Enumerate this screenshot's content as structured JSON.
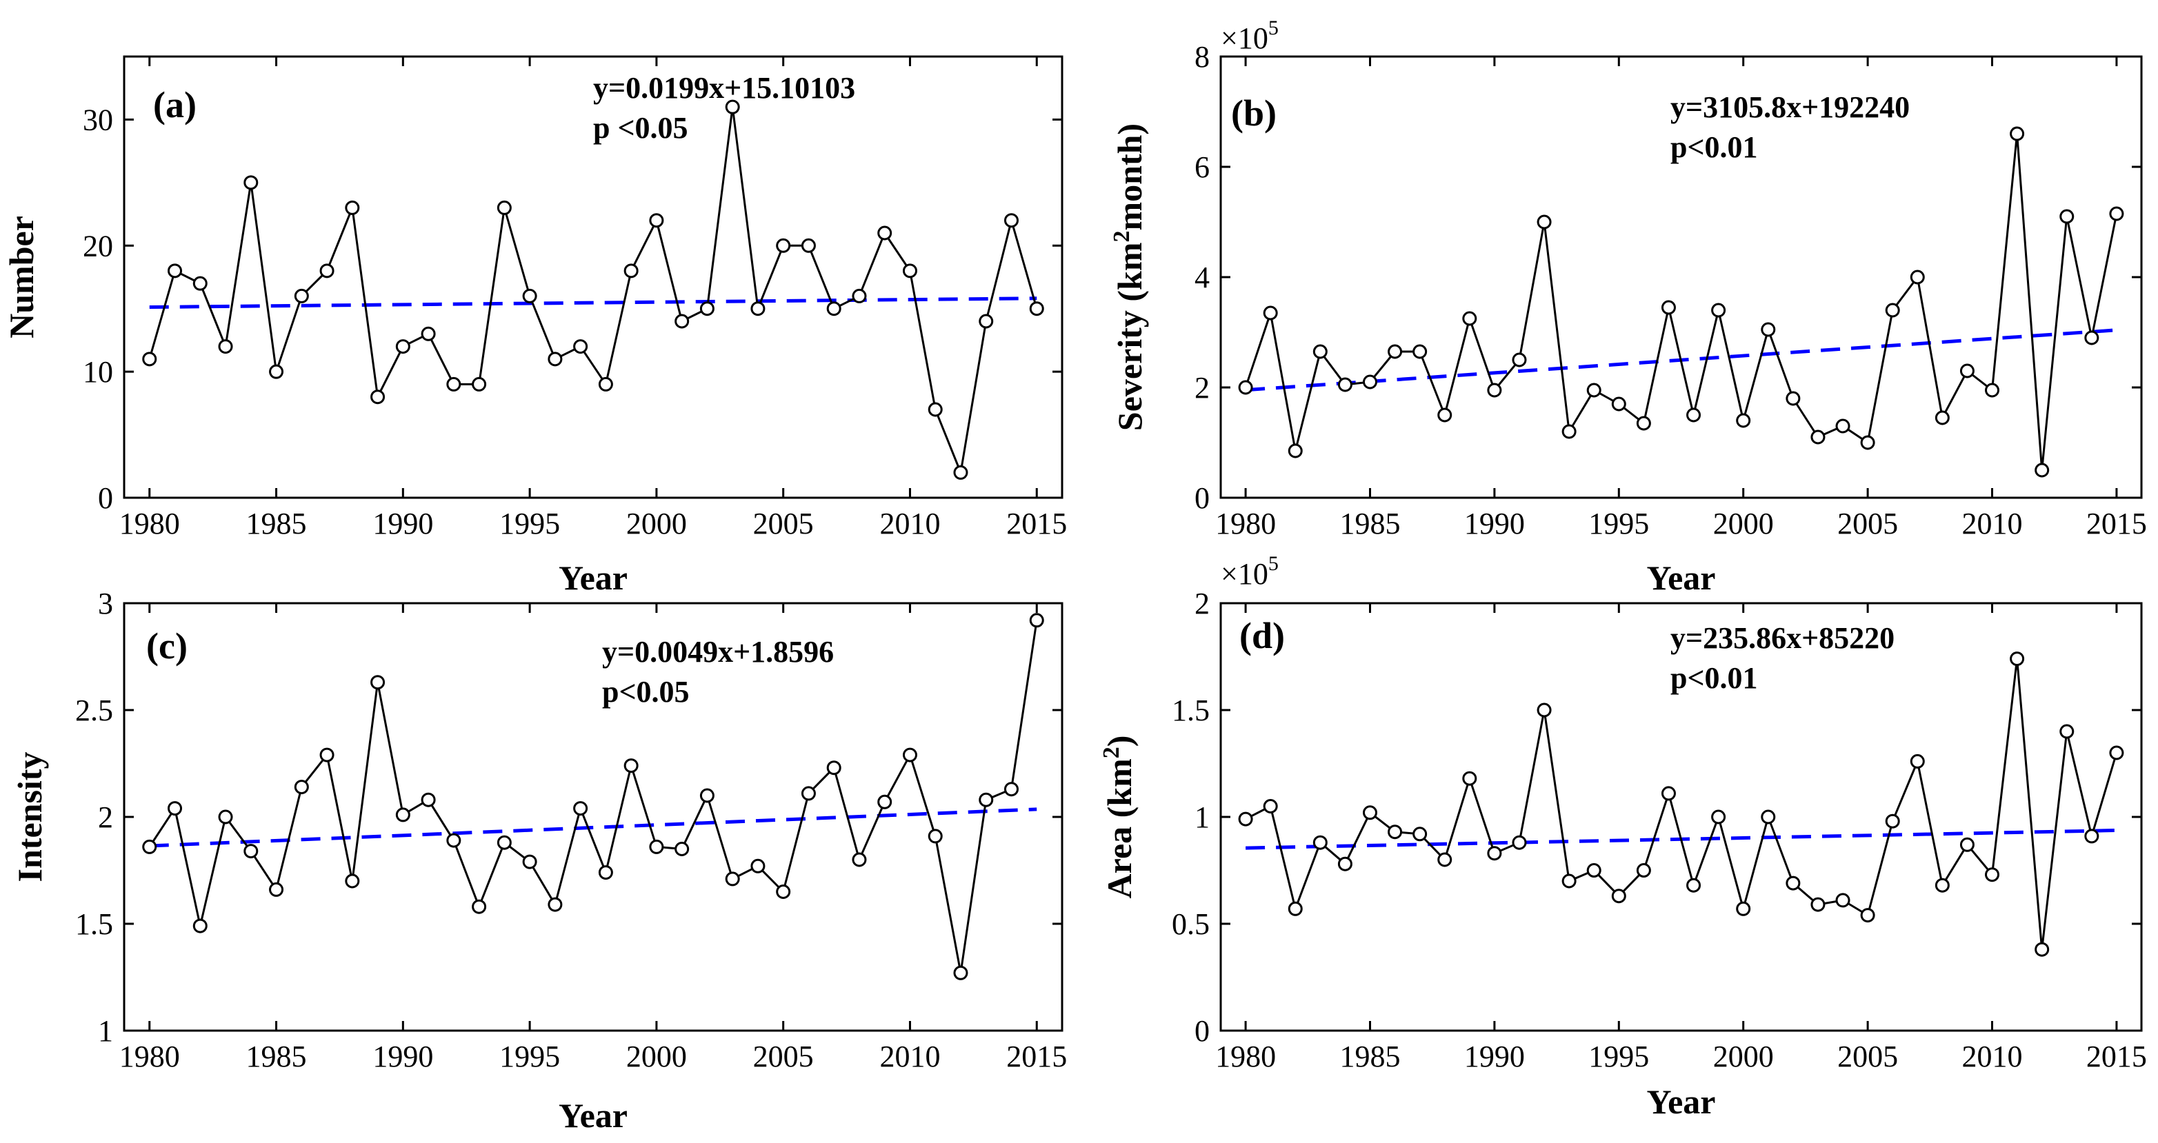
{
  "chart_data": [
    {
      "type": "line",
      "panel": "(a)",
      "xlabel": "Year",
      "ylabel": "Number",
      "xlim": [
        1979,
        2016
      ],
      "ylim": [
        0,
        35
      ],
      "xticks": [
        "1980",
        "1985",
        "1990",
        "1995",
        "2000",
        "2005",
        "2010",
        "2015"
      ],
      "yticks": [
        "0",
        "10",
        "20",
        "30"
      ],
      "equation": "y=0.0199x+15.10103",
      "p_value": "p <0.05",
      "trend": {
        "intercept": 15.10103,
        "slope": 0.0199
      },
      "x": [
        1980,
        1981,
        1982,
        1983,
        1984,
        1985,
        1986,
        1987,
        1988,
        1989,
        1990,
        1991,
        1992,
        1993,
        1994,
        1995,
        1996,
        1997,
        1998,
        1999,
        2000,
        2001,
        2002,
        2003,
        2004,
        2005,
        2006,
        2007,
        2008,
        2009,
        2010,
        2011,
        2012,
        2013,
        2014,
        2015
      ],
      "values": [
        11,
        18,
        17,
        12,
        25,
        10,
        16,
        18,
        23,
        8,
        12,
        13,
        9,
        9,
        23,
        16,
        11,
        12,
        9,
        18,
        22,
        14,
        15,
        31,
        15,
        20,
        20,
        15,
        16,
        21,
        18,
        7,
        2,
        14,
        22,
        15
      ],
      "grid": false,
      "series_color": "#000000",
      "trend_color": "#0000ff"
    },
    {
      "type": "line",
      "panel": "(b)",
      "xlabel": "Year",
      "ylabel": "Severity (km²month)",
      "ylabel_parts": {
        "pre": "Severity (km",
        "sup": "2",
        "post": "month)"
      },
      "exponent": {
        "base": "×10",
        "power": "5"
      },
      "xlim": [
        1979,
        2016
      ],
      "ylim": [
        0,
        8
      ],
      "xticks": [
        "1980",
        "1985",
        "1990",
        "1995",
        "2000",
        "2005",
        "2010",
        "2015"
      ],
      "yticks": [
        "0",
        "2",
        "4",
        "6",
        "8"
      ],
      "equation": "y=3105.8x+192240",
      "p_value": "p<0.01",
      "trend": {
        "intercept": 192240,
        "slope": 3105.8,
        "scale": 100000
      },
      "x": [
        1980,
        1981,
        1982,
        1983,
        1984,
        1985,
        1986,
        1987,
        1988,
        1989,
        1990,
        1991,
        1992,
        1993,
        1994,
        1995,
        1996,
        1997,
        1998,
        1999,
        2000,
        2001,
        2002,
        2003,
        2004,
        2005,
        2006,
        2007,
        2008,
        2009,
        2010,
        2011,
        2012,
        2013,
        2014,
        2015
      ],
      "values": [
        2.0,
        3.35,
        0.85,
        2.65,
        2.05,
        2.1,
        2.65,
        2.65,
        1.5,
        3.25,
        1.95,
        2.5,
        5.0,
        1.2,
        1.95,
        1.7,
        1.35,
        3.45,
        1.5,
        3.4,
        1.4,
        3.05,
        1.8,
        1.1,
        1.3,
        1.0,
        3.4,
        4.0,
        1.45,
        2.3,
        1.95,
        6.6,
        0.5,
        5.1,
        2.9,
        5.15
      ],
      "grid": false,
      "series_color": "#000000",
      "trend_color": "#0000ff"
    },
    {
      "type": "line",
      "panel": "(c)",
      "xlabel": "Year",
      "ylabel": "Intensity",
      "xlim": [
        1979,
        2016
      ],
      "ylim": [
        1,
        3
      ],
      "xticks": [
        "1980",
        "1985",
        "1990",
        "1995",
        "2000",
        "2005",
        "2010",
        "2015"
      ],
      "yticks": [
        "1",
        "1.5",
        "2",
        "2.5",
        "3"
      ],
      "equation": "y=0.0049x+1.8596",
      "p_value": "p<0.05",
      "trend": {
        "intercept": 1.8596,
        "slope": 0.0049
      },
      "x": [
        1980,
        1981,
        1982,
        1983,
        1984,
        1985,
        1986,
        1987,
        1988,
        1989,
        1990,
        1991,
        1992,
        1993,
        1994,
        1995,
        1996,
        1997,
        1998,
        1999,
        2000,
        2001,
        2002,
        2003,
        2004,
        2005,
        2006,
        2007,
        2008,
        2009,
        2010,
        2011,
        2012,
        2013,
        2014,
        2015
      ],
      "values": [
        1.86,
        2.04,
        1.49,
        2.0,
        1.84,
        1.66,
        2.14,
        2.29,
        1.7,
        2.63,
        2.01,
        2.08,
        1.89,
        1.58,
        1.88,
        1.79,
        1.59,
        2.04,
        1.74,
        2.24,
        1.86,
        1.85,
        2.1,
        1.71,
        1.77,
        1.65,
        2.11,
        2.23,
        1.8,
        2.07,
        2.29,
        1.91,
        1.27,
        2.08,
        2.13,
        2.92
      ],
      "grid": false,
      "series_color": "#000000",
      "trend_color": "#0000ff"
    },
    {
      "type": "line",
      "panel": "(d)",
      "xlabel": "Year",
      "ylabel": "Area (km²)",
      "ylabel_parts": {
        "pre": "Area (km",
        "sup": "2",
        "post": ")"
      },
      "exponent": {
        "base": "×10",
        "power": "5"
      },
      "xlim": [
        1979,
        2016
      ],
      "ylim": [
        0,
        2
      ],
      "xticks": [
        "1980",
        "1985",
        "1990",
        "1995",
        "2000",
        "2005",
        "2010",
        "2015"
      ],
      "yticks": [
        "0",
        "0.5",
        "1",
        "1.5",
        "2"
      ],
      "equation": "y=235.86x+85220",
      "p_value": "p<0.01",
      "trend": {
        "intercept": 85220,
        "slope": 235.86,
        "scale": 100000
      },
      "x": [
        1980,
        1981,
        1982,
        1983,
        1984,
        1985,
        1986,
        1987,
        1988,
        1989,
        1990,
        1991,
        1992,
        1993,
        1994,
        1995,
        1996,
        1997,
        1998,
        1999,
        2000,
        2001,
        2002,
        2003,
        2004,
        2005,
        2006,
        2007,
        2008,
        2009,
        2010,
        2011,
        2012,
        2013,
        2014,
        2015
      ],
      "values": [
        0.99,
        1.05,
        0.57,
        0.88,
        0.78,
        1.02,
        0.93,
        0.92,
        0.8,
        1.18,
        0.83,
        0.88,
        1.5,
        0.7,
        0.75,
        0.63,
        0.75,
        1.11,
        0.68,
        1.0,
        0.57,
        1.0,
        0.69,
        0.59,
        0.61,
        0.54,
        0.98,
        1.26,
        0.68,
        0.87,
        0.73,
        1.74,
        0.38,
        1.4,
        0.91,
        1.3
      ],
      "grid": false,
      "series_color": "#000000",
      "trend_color": "#0000ff"
    }
  ]
}
